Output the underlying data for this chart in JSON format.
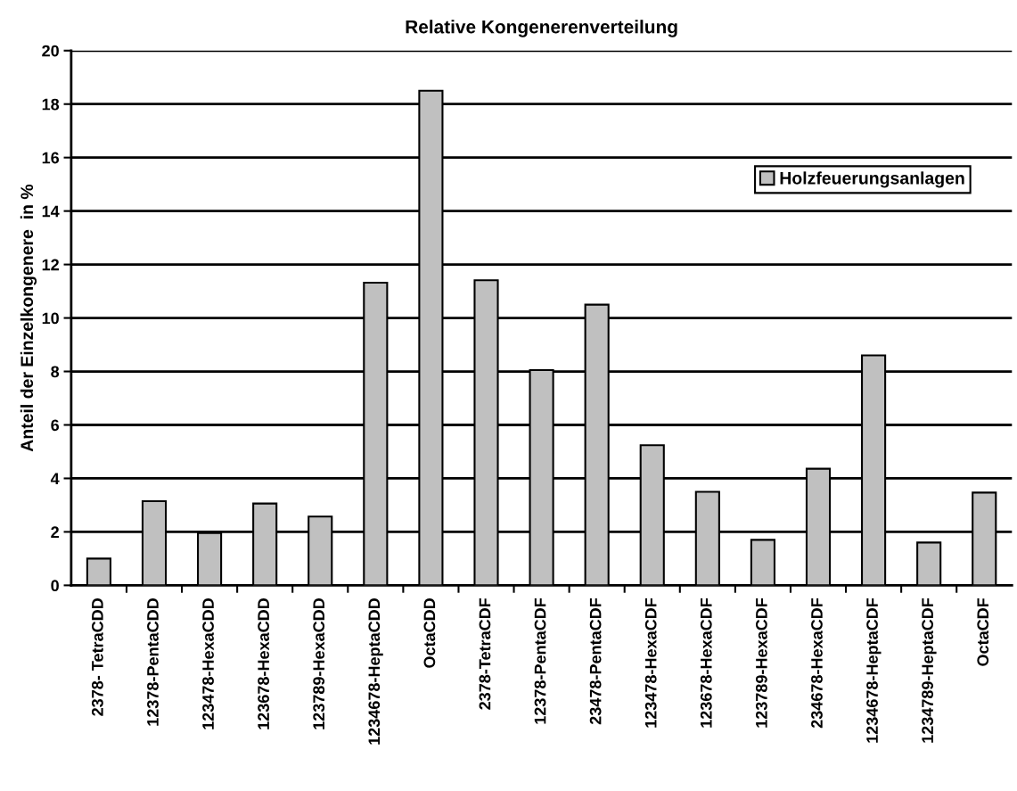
{
  "chart_data": {
    "type": "bar",
    "title": "Relative Kongenerenverteilung",
    "ylabel": "Anteil der Einzelkongenere  in %",
    "categories": [
      "2378- TetraCDD",
      "12378-PentaCDD",
      "123478-HexaCDD",
      "123678-HexaCDD",
      "123789-HexaCDD",
      "1234678-HeptaCDD",
      "OctaCDD",
      "2378-TetraCDF",
      "12378-PentaCDF",
      "23478-PentaCDF",
      "123478-HexaCDF",
      "123678-HexaCDF",
      "123789-HexaCDF",
      "234678-HexaCDF",
      "1234678-HeptaCDF",
      "1234789-HeptaCDF",
      "OctaCDF"
    ],
    "series": [
      {
        "name": "Holzfeuerungsanlagen",
        "color": "#c0c0c0",
        "values": [
          1.0,
          3.15,
          1.96,
          3.06,
          2.57,
          11.32,
          18.5,
          11.41,
          8.05,
          10.5,
          5.24,
          3.5,
          1.7,
          4.36,
          8.6,
          1.6,
          3.47
        ]
      }
    ],
    "ylim": [
      0,
      20
    ],
    "yticks": [
      0,
      2,
      4,
      6,
      8,
      10,
      12,
      14,
      16,
      18,
      20
    ],
    "grid": "y",
    "legend": "top right"
  }
}
